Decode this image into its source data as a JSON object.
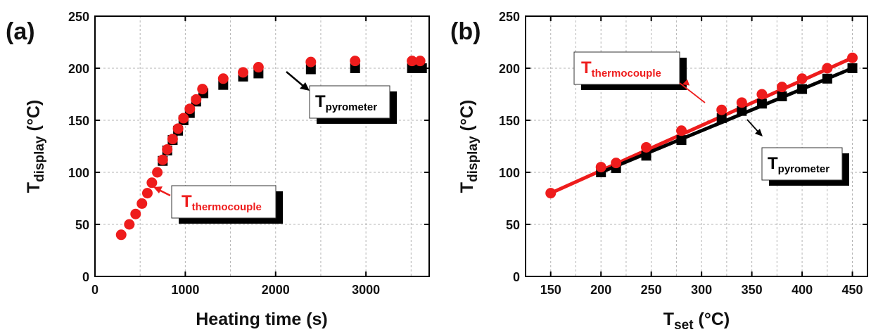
{
  "chart_data": [
    {
      "panel_label": "(a)",
      "type": "scatter",
      "xlabel": "Heating time (s)",
      "ylabel_main": "T",
      "ylabel_sub": "display",
      "ylabel_unit": " (°C)",
      "xlim": [
        0,
        3700
      ],
      "ylim": [
        0,
        250
      ],
      "xticks": [
        0,
        1000,
        2000,
        3000
      ],
      "yticks": [
        0,
        50,
        100,
        150,
        200,
        250
      ],
      "grid": true,
      "series": [
        {
          "name_main": "T",
          "name_sub": "thermocouple",
          "marker": "circle",
          "color": "#ee1c1c",
          "x": [
            290,
            380,
            450,
            520,
            580,
            630,
            690,
            750,
            800,
            860,
            920,
            980,
            1050,
            1120,
            1190,
            1420,
            1640,
            1810,
            2390,
            2880,
            3510,
            3600
          ],
          "y": [
            40,
            50,
            60,
            70,
            80,
            90,
            100,
            112,
            122,
            132,
            142,
            152,
            161,
            170,
            180,
            190,
            196,
            201,
            206,
            207,
            207,
            207
          ]
        },
        {
          "name_main": "T",
          "name_sub": "pyrometer",
          "marker": "square",
          "color": "#000000",
          "x": [
            750,
            800,
            860,
            920,
            980,
            1050,
            1120,
            1200,
            1420,
            1640,
            1810,
            2390,
            2880,
            3510,
            3580,
            3620
          ],
          "y": [
            111,
            121,
            131,
            140,
            150,
            157,
            168,
            176,
            184,
            192,
            195,
            199,
            200,
            200,
            200,
            200
          ]
        }
      ]
    },
    {
      "panel_label": "(b)",
      "type": "scatter",
      "xlabel_main": "T",
      "xlabel_sub": "set",
      "xlabel_unit": " (°C)",
      "ylabel_main": "T",
      "ylabel_sub": "display",
      "ylabel_unit": " (°C)",
      "xlim": [
        125,
        465
      ],
      "ylim": [
        0,
        250
      ],
      "xticks": [
        150,
        200,
        250,
        300,
        350,
        400,
        450
      ],
      "yticks": [
        0,
        50,
        100,
        150,
        200,
        250
      ],
      "grid": true,
      "series": [
        {
          "name_main": "T",
          "name_sub": "thermocouple",
          "marker": "circle",
          "color": "#ee1c1c",
          "x": [
            150,
            200,
            215,
            245,
            280,
            320,
            340,
            360,
            380,
            400,
            425,
            450
          ],
          "y": [
            80,
            105,
            109,
            124,
            140,
            160,
            167,
            175,
            182,
            190,
            200,
            210
          ],
          "fit": [
            [
              150,
              80
            ],
            [
              450,
              210
            ]
          ]
        },
        {
          "name_main": "T",
          "name_sub": "pyrometer",
          "marker": "square",
          "color": "#000000",
          "x": [
            200,
            215,
            245,
            280,
            320,
            340,
            360,
            380,
            400,
            425,
            450
          ],
          "y": [
            100,
            104,
            116,
            131,
            152,
            159,
            166,
            173,
            180,
            190,
            200
          ],
          "fit": [
            [
              200,
              100
            ],
            [
              450,
              200
            ]
          ]
        }
      ]
    }
  ]
}
